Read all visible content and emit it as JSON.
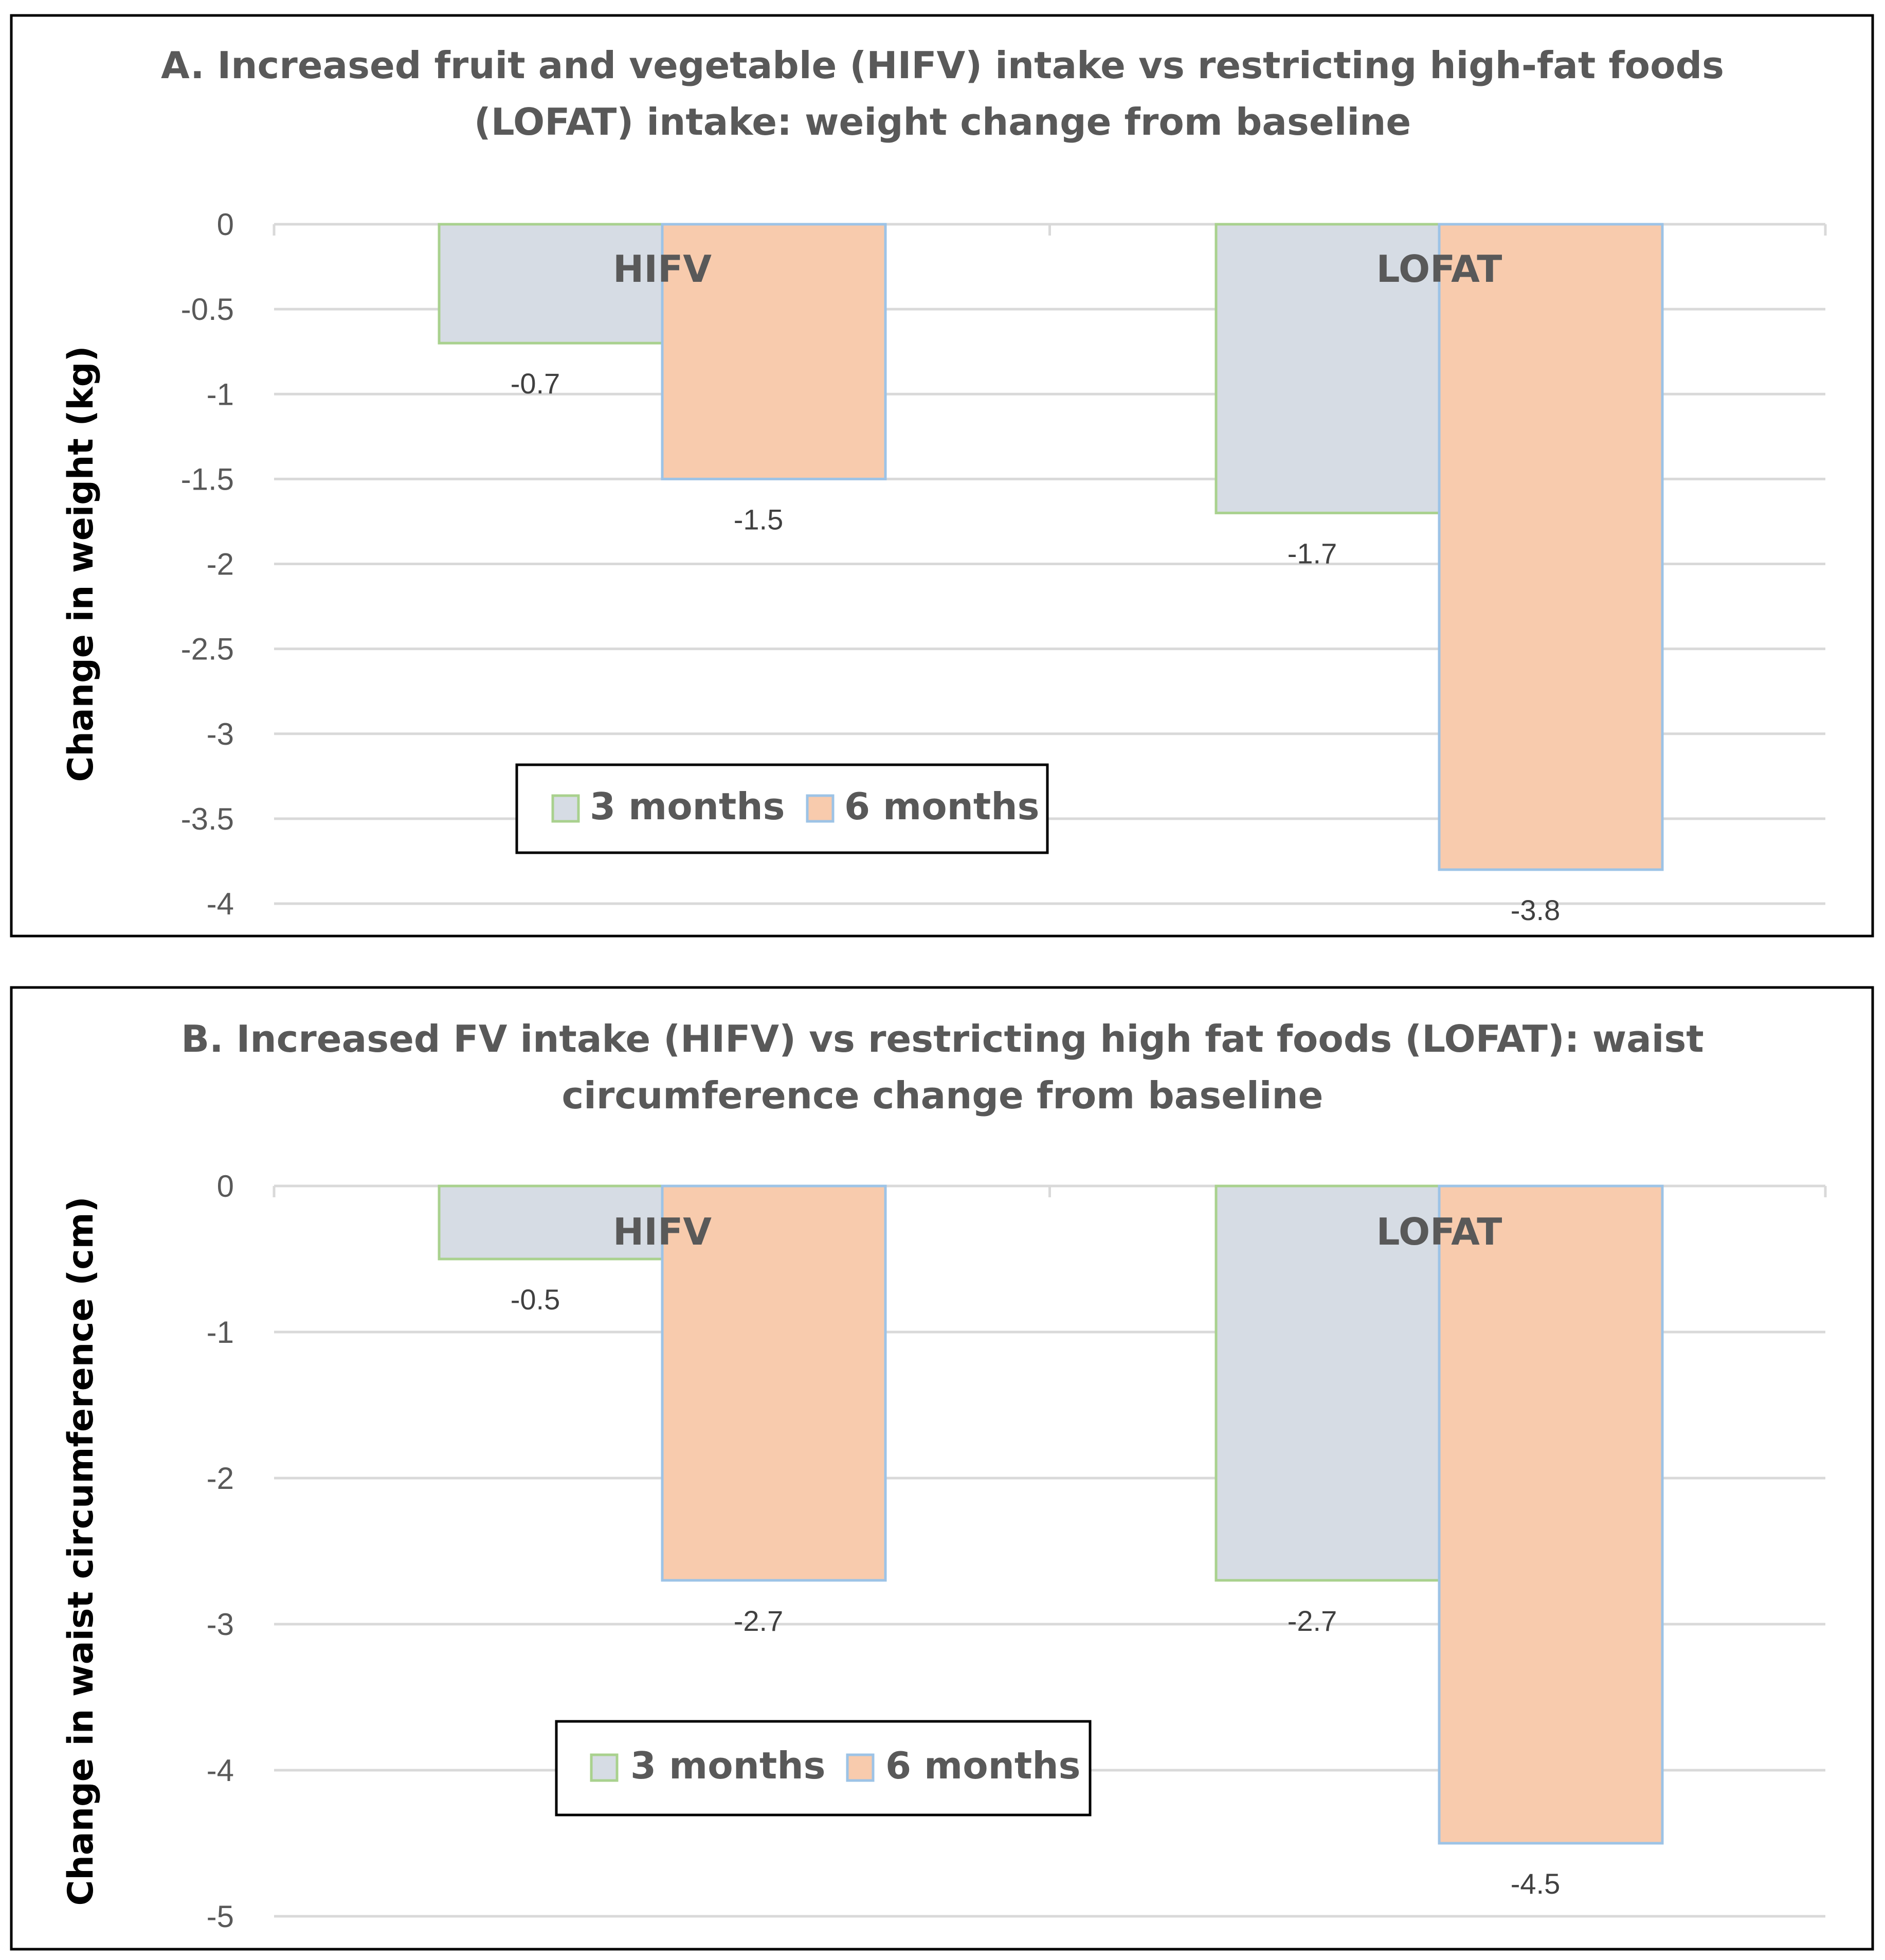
{
  "chart_data": [
    {
      "type": "bar",
      "title": "A. Increased fruit and vegetable (HIFV) intake vs restricting high-fat foods (LOFAT) intake: weight change from baseline",
      "title_lines": [
        "A. Increased fruit and vegetable (HIFV) intake vs restricting high-fat foods",
        "(LOFAT) intake: weight change from baseline"
      ],
      "xlabel": "",
      "ylabel": "Change in weight (kg)",
      "categories": [
        "HIFV",
        "LOFAT"
      ],
      "series": [
        {
          "name": "3 months",
          "values": [
            -0.7,
            -1.7
          ],
          "fill": "#d6dce4",
          "stroke": "#a9d18e"
        },
        {
          "name": "6 months",
          "values": [
            -1.5,
            -3.8
          ],
          "fill": "#f8cbad",
          "stroke": "#9dc3e6"
        }
      ],
      "value_labels": [
        [
          "-0.7",
          "-1.7"
        ],
        [
          "-1.5",
          "-3.8"
        ]
      ],
      "ylim": [
        -4,
        0
      ],
      "yticks": [
        0,
        -0.5,
        -1,
        -1.5,
        -2,
        -2.5,
        -3,
        -3.5,
        -4
      ],
      "ytick_labels": [
        "0",
        "-0.5",
        "-1",
        "-1.5",
        "-2",
        "-2.5",
        "-3",
        "-3.5",
        "-4"
      ],
      "grid": true,
      "legend": "bottom-left"
    },
    {
      "type": "bar",
      "title": "B. Increased FV intake (HIFV) vs restricting high fat foods (LOFAT): waist circumference change from baseline",
      "title_lines": [
        "B. Increased FV intake (HIFV) vs restricting high fat foods (LOFAT): waist",
        "circumference change from baseline"
      ],
      "xlabel": "",
      "ylabel": "Change in waist circumference (cm)",
      "categories": [
        "HIFV",
        "LOFAT"
      ],
      "series": [
        {
          "name": "3 months",
          "values": [
            -0.5,
            -2.7
          ],
          "fill": "#d6dce4",
          "stroke": "#a9d18e"
        },
        {
          "name": "6 months",
          "values": [
            -2.7,
            -4.5
          ],
          "fill": "#f8cbad",
          "stroke": "#9dc3e6"
        }
      ],
      "value_labels": [
        [
          "-0.5",
          "-2.7"
        ],
        [
          "-2.7",
          "-4.5"
        ]
      ],
      "ylim": [
        -5,
        0
      ],
      "yticks": [
        0,
        -1,
        -2,
        -3,
        -4,
        -5
      ],
      "ytick_labels": [
        "0",
        "-1",
        "-2",
        "-3",
        "-4",
        "-5"
      ],
      "grid": true,
      "legend": "bottom-left"
    }
  ]
}
